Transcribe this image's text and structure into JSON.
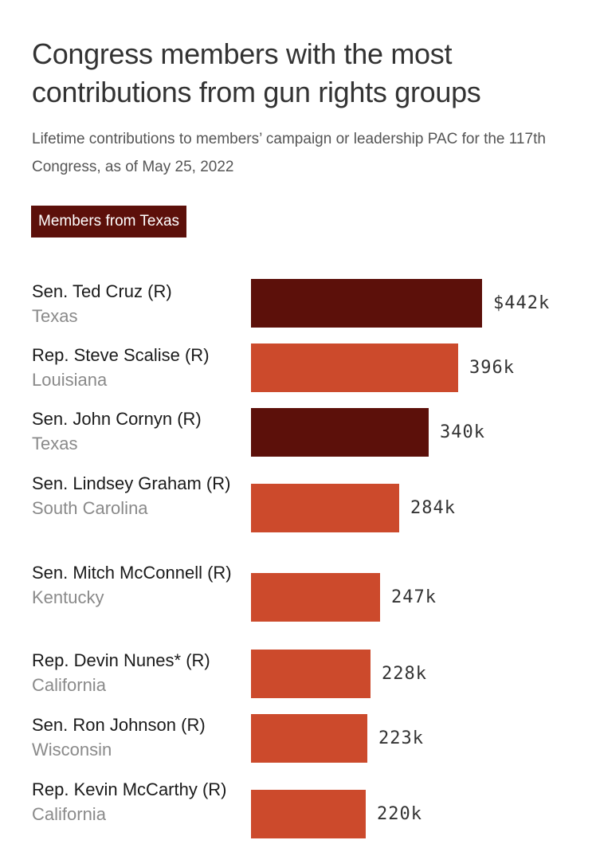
{
  "title": "Congress members with the most contributions from gun rights groups",
  "subtitle": "Lifetime contributions to members’ campaign or leadership PAC for the 117th Congress, as of May 25, 2022",
  "legend": {
    "label": "Members from Texas",
    "color": "#5c100a"
  },
  "colors": {
    "highlight": "#5c100a",
    "default": "#cc4a2c"
  },
  "chart_data": {
    "type": "bar",
    "orientation": "horizontal",
    "title": "Congress members with the most contributions from gun rights groups",
    "subtitle": "Lifetime contributions to members’ campaign or leadership PAC for the 117th Congress, as of May 25, 2022",
    "unit": "thousands of USD",
    "xlim": [
      0,
      442
    ],
    "categories": [
      "Sen. Ted Cruz (R)",
      "Rep. Steve Scalise (R)",
      "Sen. John Cornyn (R)",
      "Sen. Lindsey Graham (R)",
      "Sen. Mitch McConnell (R)",
      "Rep. Devin Nunes* (R)",
      "Sen. Ron Johnson (R)",
      "Rep. Kevin McCarthy (R)"
    ],
    "rows": [
      {
        "name": "Sen. Ted Cruz (R)",
        "state": "Texas",
        "value": 442,
        "label": "$442k",
        "texas": true
      },
      {
        "name": "Rep. Steve Scalise (R)",
        "state": "Louisiana",
        "value": 396,
        "label": "396k",
        "texas": false
      },
      {
        "name": "Sen. John Cornyn (R)",
        "state": "Texas",
        "value": 340,
        "label": "340k",
        "texas": true
      },
      {
        "name": "Sen. Lindsey Graham (R)",
        "state": "South Carolina",
        "value": 284,
        "label": "284k",
        "texas": false
      },
      {
        "name": "Sen. Mitch McConnell (R)",
        "state": "Kentucky",
        "value": 247,
        "label": "247k",
        "texas": false
      },
      {
        "name": "Rep. Devin Nunes* (R)",
        "state": "California",
        "value": 228,
        "label": "228k",
        "texas": false
      },
      {
        "name": "Sen. Ron Johnson (R)",
        "state": "Wisconsin",
        "value": 223,
        "label": "223k",
        "texas": false
      },
      {
        "name": "Rep. Kevin McCarthy (R)",
        "state": "California",
        "value": 220,
        "label": "220k",
        "texas": false
      }
    ]
  }
}
